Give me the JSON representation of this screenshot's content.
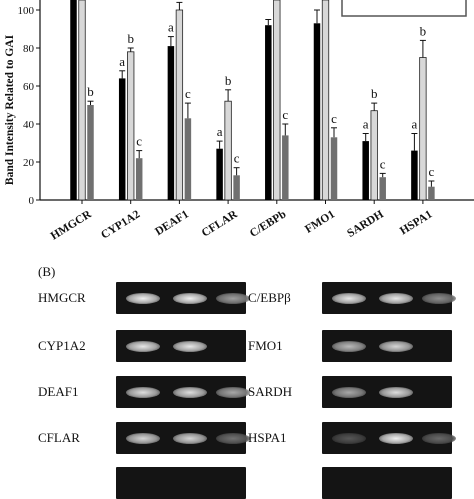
{
  "chart_data": {
    "type": "bar",
    "ylabel": "Band Intensity Related to GAI",
    "yticks": [
      0,
      20,
      40,
      60,
      80,
      100
    ],
    "ylim": [
      0,
      110
    ],
    "categories": [
      "HMGCR",
      "CYP1A2",
      "DEAF1",
      "CFLAR",
      "C/EBPb",
      "FMO1",
      "SARDH",
      "HSPA1"
    ],
    "series": [
      {
        "color": "#000000",
        "values": [
          110,
          64,
          81,
          27,
          92,
          93,
          31,
          26
        ],
        "errors": [
          0,
          4,
          5,
          4,
          3,
          7,
          4,
          9
        ]
      },
      {
        "color": "#d8d8d8",
        "values": [
          110,
          78,
          100,
          52,
          110,
          110,
          47,
          75
        ],
        "errors": [
          0,
          2,
          4,
          6,
          0,
          0,
          4,
          9
        ]
      },
      {
        "color": "#707070",
        "values": [
          50,
          22,
          43,
          13,
          34,
          33,
          12,
          7
        ],
        "errors": [
          2,
          4,
          8,
          4,
          6,
          5,
          2,
          3
        ]
      }
    ],
    "annotations": [
      [
        "",
        "",
        "b"
      ],
      [
        "a",
        "b",
        "c"
      ],
      [
        "a",
        "b",
        "c"
      ],
      [
        "a",
        "b",
        "c"
      ],
      [
        "",
        "",
        "c"
      ],
      [
        "",
        "",
        "c"
      ],
      [
        "a",
        "b",
        "c"
      ],
      [
        "a",
        "b",
        "c"
      ]
    ]
  },
  "gel": {
    "panel_label": "(B)",
    "left_genes": [
      "HMGCR",
      "CYP1A2",
      "DEAF1",
      "CFLAR"
    ],
    "right_genes": [
      "C/EBPβ",
      "FMO1",
      "SARDH",
      "HSPA1"
    ],
    "left_band_intensity": [
      [
        1.0,
        1.0,
        0.55
      ],
      [
        0.95,
        0.95,
        0.0
      ],
      [
        0.9,
        0.9,
        0.6
      ],
      [
        0.85,
        0.85,
        0.3
      ]
    ],
    "right_band_intensity": [
      [
        0.95,
        0.95,
        0.45
      ],
      [
        0.7,
        0.85,
        0.0
      ],
      [
        0.6,
        0.9,
        0.0
      ],
      [
        0.15,
        1.0,
        0.25
      ]
    ]
  }
}
